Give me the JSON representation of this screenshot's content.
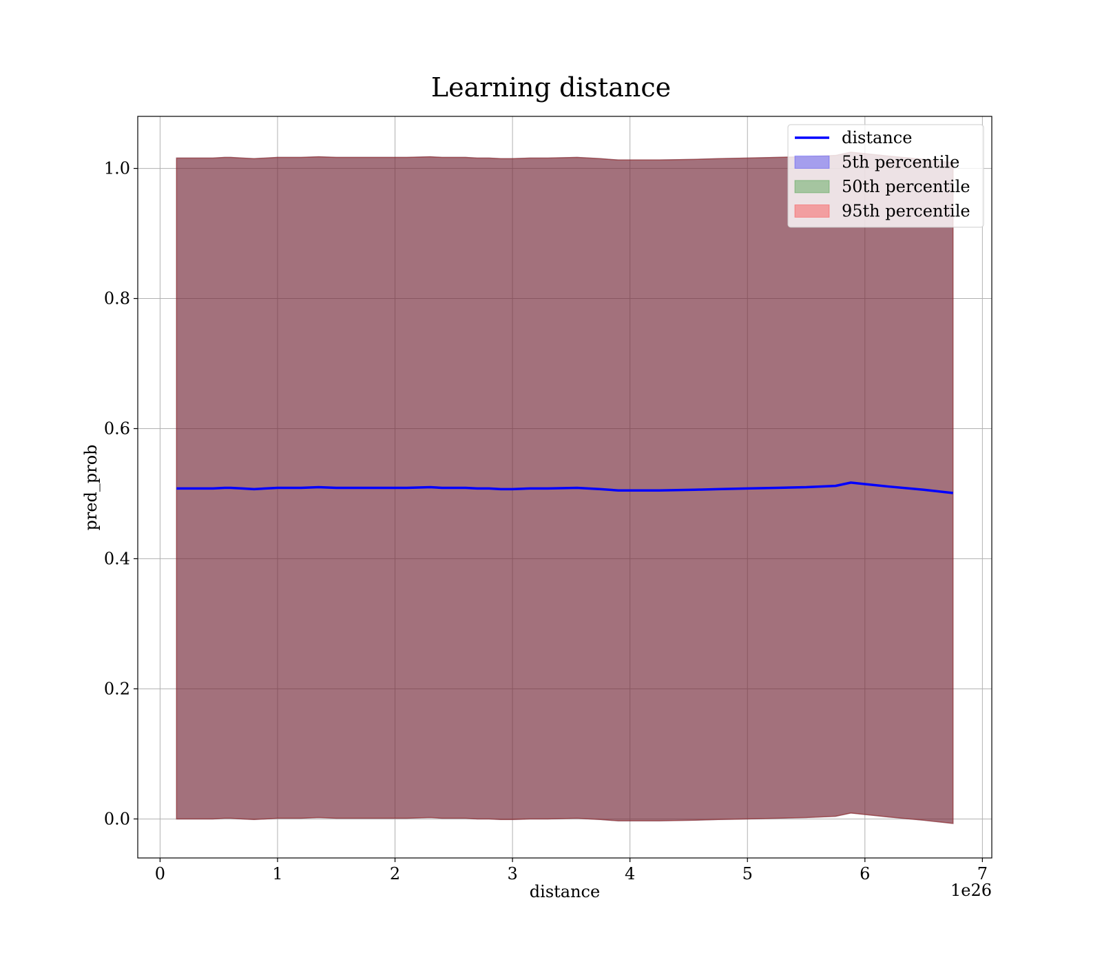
{
  "chart_data": {
    "type": "area",
    "title": "Learning distance",
    "xlabel": "distance",
    "ylabel": "pred_prob",
    "x_offset_label": "1e26",
    "xlim": [
      -0.19,
      7.08
    ],
    "ylim": [
      -0.06,
      1.08
    ],
    "x_ticks": [
      0,
      1,
      2,
      3,
      4,
      5,
      6,
      7
    ],
    "x_tick_labels": [
      "0",
      "1",
      "2",
      "3",
      "4",
      "5",
      "6",
      "7"
    ],
    "y_ticks": [
      0.0,
      0.2,
      0.4,
      0.6,
      0.8,
      1.0
    ],
    "y_tick_labels": [
      "0.0",
      "0.2",
      "0.4",
      "0.6",
      "0.8",
      "1.0"
    ],
    "grid": true,
    "legend_position": "top-right",
    "x": [
      0.14,
      0.25,
      0.35,
      0.45,
      0.55,
      0.6,
      0.7,
      0.8,
      0.9,
      1.0,
      1.1,
      1.2,
      1.35,
      1.5,
      1.6,
      1.7,
      1.8,
      1.9,
      2.0,
      2.1,
      2.3,
      2.4,
      2.5,
      2.6,
      2.7,
      2.8,
      2.9,
      3.0,
      3.15,
      3.3,
      3.55,
      3.75,
      3.9,
      4.0,
      4.25,
      4.55,
      4.75,
      5.0,
      5.25,
      5.5,
      5.75,
      5.88,
      6.2,
      6.5,
      6.75
    ],
    "series": [
      {
        "name": "distance",
        "kind": "line",
        "color": "#0000ff",
        "values": [
          0.508,
          0.508,
          0.508,
          0.508,
          0.509,
          0.509,
          0.508,
          0.507,
          0.508,
          0.509,
          0.509,
          0.509,
          0.51,
          0.509,
          0.509,
          0.509,
          0.509,
          0.509,
          0.509,
          0.509,
          0.51,
          0.509,
          0.509,
          0.509,
          0.508,
          0.508,
          0.507,
          0.507,
          0.508,
          0.508,
          0.509,
          0.507,
          0.505,
          0.505,
          0.505,
          0.506,
          0.507,
          0.508,
          0.509,
          0.51,
          0.512,
          0.517,
          0.511,
          0.506,
          0.501
        ]
      },
      {
        "name": "5th percentile",
        "kind": "band",
        "color": "#0000ff",
        "lower": [
          0.0,
          0.0,
          0.0,
          0.0,
          0.001,
          0.001,
          0.0,
          -0.001,
          0.0,
          0.001,
          0.001,
          0.001,
          0.002,
          0.001,
          0.001,
          0.001,
          0.001,
          0.001,
          0.001,
          0.001,
          0.002,
          0.001,
          0.001,
          0.001,
          0.0,
          0.0,
          -0.001,
          -0.001,
          0.0,
          0.0,
          0.001,
          -0.001,
          -0.003,
          -0.003,
          -0.003,
          -0.002,
          -0.001,
          0.0,
          0.001,
          0.002,
          0.004,
          0.009,
          0.003,
          -0.002,
          -0.007
        ],
        "upper": [
          1.016,
          1.016,
          1.016,
          1.016,
          1.017,
          1.017,
          1.016,
          1.015,
          1.016,
          1.017,
          1.017,
          1.017,
          1.018,
          1.017,
          1.017,
          1.017,
          1.017,
          1.017,
          1.017,
          1.017,
          1.018,
          1.017,
          1.017,
          1.017,
          1.016,
          1.016,
          1.015,
          1.015,
          1.016,
          1.016,
          1.017,
          1.015,
          1.013,
          1.013,
          1.013,
          1.014,
          1.015,
          1.016,
          1.017,
          1.018,
          1.02,
          1.025,
          1.019,
          1.014,
          1.009
        ]
      },
      {
        "name": "50th percentile",
        "kind": "band",
        "color": "#008000",
        "lower": [
          0.0,
          0.0,
          0.0,
          0.0,
          0.001,
          0.001,
          0.0,
          -0.001,
          0.0,
          0.001,
          0.001,
          0.001,
          0.002,
          0.001,
          0.001,
          0.001,
          0.001,
          0.001,
          0.001,
          0.001,
          0.002,
          0.001,
          0.001,
          0.001,
          0.0,
          0.0,
          -0.001,
          -0.001,
          0.0,
          0.0,
          0.001,
          -0.001,
          -0.003,
          -0.003,
          -0.003,
          -0.002,
          -0.001,
          0.0,
          0.001,
          0.002,
          0.004,
          0.009,
          0.003,
          -0.002,
          -0.007
        ],
        "upper": [
          1.016,
          1.016,
          1.016,
          1.016,
          1.017,
          1.017,
          1.016,
          1.015,
          1.016,
          1.017,
          1.017,
          1.017,
          1.018,
          1.017,
          1.017,
          1.017,
          1.017,
          1.017,
          1.017,
          1.017,
          1.018,
          1.017,
          1.017,
          1.017,
          1.016,
          1.016,
          1.015,
          1.015,
          1.016,
          1.016,
          1.017,
          1.015,
          1.013,
          1.013,
          1.013,
          1.014,
          1.015,
          1.016,
          1.017,
          1.018,
          1.02,
          1.025,
          1.019,
          1.014,
          1.009
        ]
      },
      {
        "name": "95th percentile",
        "kind": "band",
        "color": "#ff0000",
        "lower": [
          0.0,
          0.0,
          0.0,
          0.0,
          0.001,
          0.001,
          0.0,
          -0.001,
          0.0,
          0.001,
          0.001,
          0.001,
          0.002,
          0.001,
          0.001,
          0.001,
          0.001,
          0.001,
          0.001,
          0.001,
          0.002,
          0.001,
          0.001,
          0.001,
          0.0,
          0.0,
          -0.001,
          -0.001,
          0.0,
          0.0,
          0.001,
          -0.001,
          -0.003,
          -0.003,
          -0.003,
          -0.002,
          -0.001,
          0.0,
          0.001,
          0.002,
          0.004,
          0.009,
          0.003,
          -0.002,
          -0.007
        ],
        "upper": [
          1.016,
          1.016,
          1.016,
          1.016,
          1.017,
          1.017,
          1.016,
          1.015,
          1.016,
          1.017,
          1.017,
          1.017,
          1.018,
          1.017,
          1.017,
          1.017,
          1.017,
          1.017,
          1.017,
          1.017,
          1.018,
          1.017,
          1.017,
          1.017,
          1.016,
          1.016,
          1.015,
          1.015,
          1.016,
          1.016,
          1.017,
          1.015,
          1.013,
          1.013,
          1.013,
          1.014,
          1.015,
          1.016,
          1.017,
          1.018,
          1.02,
          1.025,
          1.019,
          1.014,
          1.009
        ]
      }
    ]
  }
}
